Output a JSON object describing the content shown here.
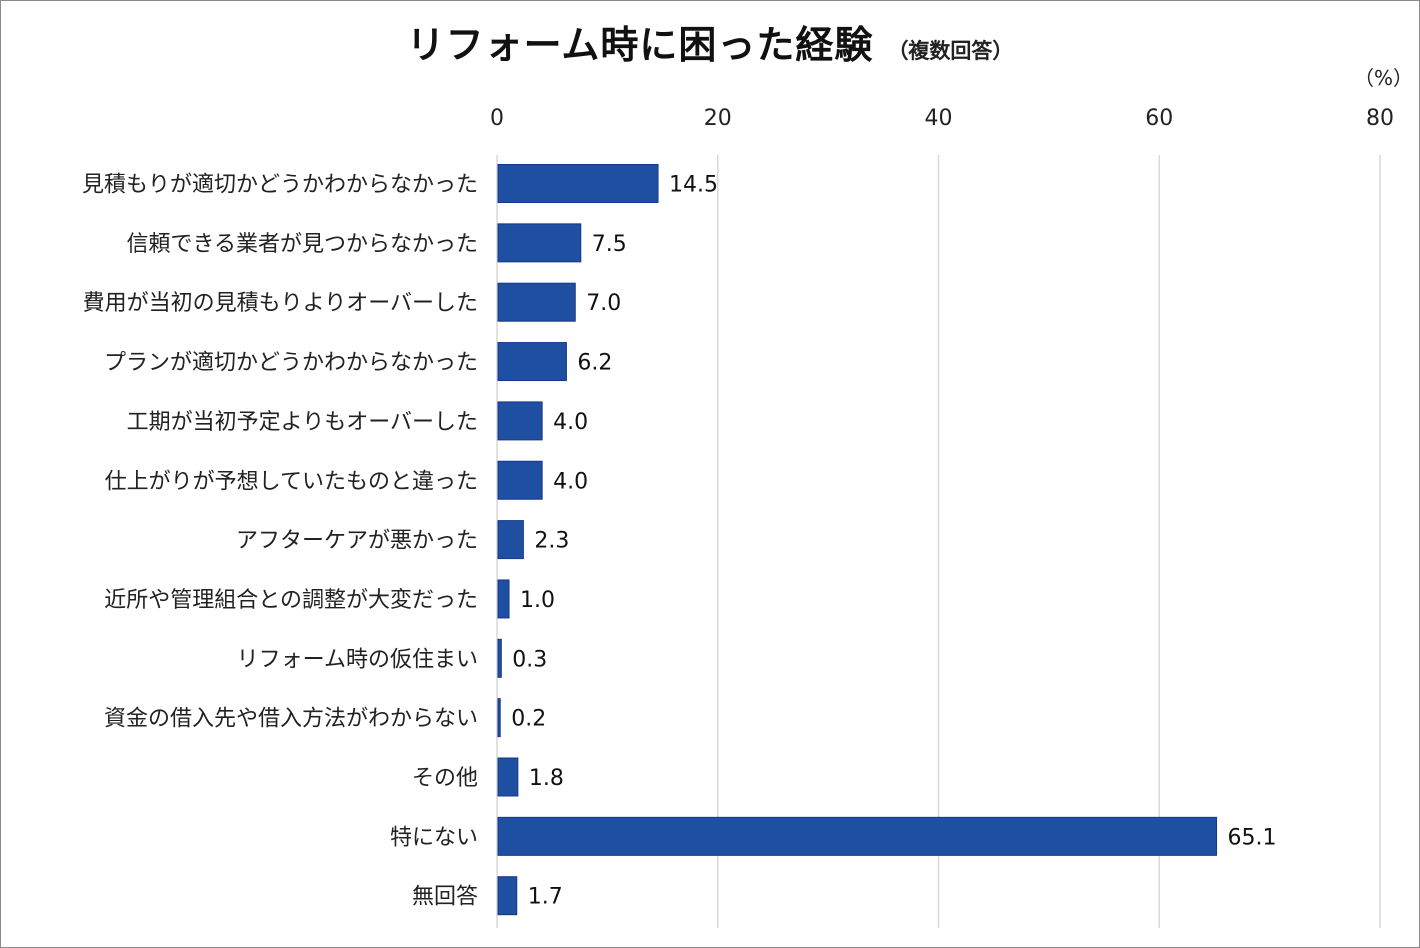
{
  "chart_data": {
    "type": "bar",
    "orientation": "horizontal",
    "title": "リフォーム時に困った経験",
    "subtitle": "（複数回答）",
    "unit": "（%）",
    "xlim": [
      0,
      80
    ],
    "xticks": [
      0,
      20,
      40,
      60,
      80
    ],
    "grid": true,
    "bar_color": "#1f4fa0",
    "categories": [
      "見積もりが適切かどうかわからなかった",
      "信頼できる業者が見つからなかった",
      "費用が当初の見積もりよりオーバーした",
      "プランが適切かどうかわからなかった",
      "工期が当初予定よりもオーバーした",
      "仕上がりが予想していたものと違った",
      "アフターケアが悪かった",
      "近所や管理組合との調整が大変だった",
      "リフォーム時の仮住まい",
      "資金の借入先や借入方法がわからない",
      "その他",
      "特にない",
      "無回答"
    ],
    "values": [
      14.5,
      7.5,
      7.0,
      6.2,
      4.0,
      4.0,
      2.3,
      1.0,
      0.3,
      0.2,
      1.8,
      65.1,
      1.7
    ],
    "value_labels": [
      "14.5",
      "7.5",
      "7.0",
      "6.2",
      "4.0",
      "4.0",
      "2.3",
      "1.0",
      "0.3",
      "0.2",
      "1.8",
      "65.1",
      "1.7"
    ]
  }
}
